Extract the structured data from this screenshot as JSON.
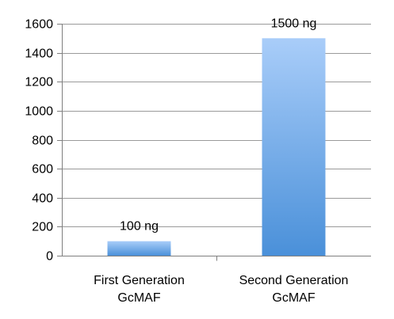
{
  "chart_data": {
    "type": "bar",
    "categories": [
      [
        "First Generation",
        "GcMAF"
      ],
      [
        "Second Generation",
        "GcMAF"
      ]
    ],
    "values": [
      100,
      1500
    ],
    "data_labels": [
      "100 ng",
      "1500 ng"
    ],
    "ylim": [
      0,
      1600
    ],
    "yticks": [
      0,
      200,
      400,
      600,
      800,
      1000,
      1200,
      1400,
      1600
    ],
    "grid": true,
    "legend": "none",
    "bar_color_top": "#a9cdf9",
    "bar_color_bottom": "#4a90d9"
  }
}
